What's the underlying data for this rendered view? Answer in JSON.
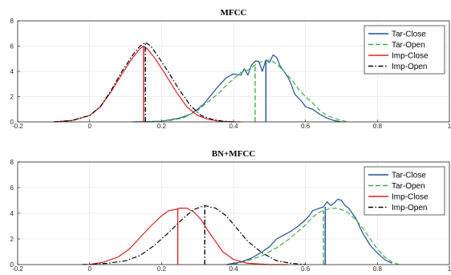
{
  "chart_data": [
    {
      "type": "line",
      "title": "MFCC",
      "xlabel": "",
      "ylabel": "",
      "xlim": [
        -0.2,
        1
      ],
      "ylim": [
        0,
        8
      ],
      "xticks": [
        "-0.2",
        "0",
        "0.2",
        "0.4",
        "0.6",
        "0.8",
        "1"
      ],
      "yticks": [
        "0",
        "2",
        "4",
        "6",
        "8"
      ],
      "grid": true,
      "legend_position": "top-right",
      "series": [
        {
          "name": "Tar-Close",
          "color": "#1f4e9c",
          "dash": "solid",
          "x": [
            0.12,
            0.2,
            0.25,
            0.28,
            0.3,
            0.32,
            0.34,
            0.36,
            0.38,
            0.4,
            0.42,
            0.43,
            0.44,
            0.45,
            0.46,
            0.47,
            0.48,
            0.49,
            0.5,
            0.51,
            0.52,
            0.53,
            0.54,
            0.55,
            0.56,
            0.57,
            0.58,
            0.59,
            0.6,
            0.62,
            0.64,
            0.66,
            0.68,
            0.7
          ],
          "y": [
            0,
            0.05,
            0.3,
            0.6,
            1.0,
            1.5,
            2.2,
            2.9,
            3.5,
            3.8,
            3.7,
            4.2,
            3.7,
            4.5,
            4.8,
            4.8,
            4.0,
            4.9,
            4.7,
            5.3,
            5.1,
            4.4,
            4.0,
            3.6,
            3.0,
            2.2,
            1.9,
            1.6,
            1.2,
            1.0,
            0.6,
            0.3,
            0.1,
            0
          ],
          "marker_x": 0.49,
          "marker_y": 4.9
        },
        {
          "name": "Tar-Open",
          "color": "#3cb043",
          "dash": "dashed",
          "x": [
            0.16,
            0.22,
            0.26,
            0.3,
            0.33,
            0.36,
            0.38,
            0.4,
            0.42,
            0.44,
            0.46,
            0.48,
            0.5,
            0.52,
            0.54,
            0.56,
            0.58,
            0.6,
            0.62,
            0.64,
            0.66,
            0.68,
            0.7,
            0.72
          ],
          "y": [
            0,
            0.1,
            0.3,
            0.9,
            1.6,
            2.3,
            2.9,
            3.4,
            3.9,
            4.1,
            4.5,
            4.8,
            4.9,
            4.6,
            4.0,
            3.4,
            2.6,
            2.0,
            1.5,
            0.9,
            0.5,
            0.3,
            0.1,
            0
          ],
          "marker_x": 0.46,
          "marker_y": 4.5
        },
        {
          "name": "Imp-Close",
          "color": "#e02020",
          "dash": "solid",
          "x": [
            -0.1,
            -0.05,
            0.0,
            0.03,
            0.06,
            0.09,
            0.12,
            0.14,
            0.15,
            0.16,
            0.18,
            0.21,
            0.24,
            0.27,
            0.3,
            0.33,
            0.36,
            0.4,
            0.42
          ],
          "y": [
            0,
            0.1,
            0.5,
            1.2,
            2.4,
            3.8,
            5.1,
            5.8,
            6.0,
            5.8,
            5.1,
            3.8,
            2.4,
            1.2,
            0.5,
            0.2,
            0.05,
            0,
            0
          ],
          "marker_x": 0.15,
          "marker_y": 6.0
        },
        {
          "name": "Imp-Open",
          "color": "#000000",
          "dash": "dashdot",
          "x": [
            -0.1,
            -0.05,
            0.0,
            0.03,
            0.06,
            0.09,
            0.12,
            0.14,
            0.155,
            0.17,
            0.19,
            0.22,
            0.25,
            0.28,
            0.31,
            0.34,
            0.37,
            0.4
          ],
          "y": [
            0,
            0.1,
            0.5,
            1.2,
            2.5,
            4.0,
            5.3,
            6.0,
            6.3,
            6.0,
            5.2,
            3.9,
            2.5,
            1.3,
            0.5,
            0.2,
            0.05,
            0
          ],
          "marker_x": 0.155,
          "marker_y": 6.3
        }
      ]
    },
    {
      "type": "line",
      "title": "BN+MFCC",
      "xlabel": "",
      "ylabel": "",
      "xlim": [
        -0.2,
        1
      ],
      "ylim": [
        0,
        8
      ],
      "xticks": [
        "-0.2",
        "0",
        "0.2",
        "0.4",
        "0.6",
        "0.8",
        "1"
      ],
      "yticks": [
        "0",
        "2",
        "4",
        "6",
        "8"
      ],
      "grid": true,
      "legend_position": "top-right",
      "series": [
        {
          "name": "Tar-Close",
          "color": "#1f4e9c",
          "dash": "solid",
          "x": [
            0.38,
            0.42,
            0.45,
            0.48,
            0.5,
            0.52,
            0.54,
            0.56,
            0.58,
            0.6,
            0.61,
            0.62,
            0.63,
            0.64,
            0.65,
            0.66,
            0.67,
            0.68,
            0.69,
            0.7,
            0.71,
            0.72,
            0.73,
            0.74,
            0.75,
            0.76,
            0.78,
            0.8,
            0.82,
            0.84
          ],
          "y": [
            0,
            0.2,
            0.5,
            1.0,
            1.4,
            2.0,
            2.3,
            2.6,
            3.0,
            3.5,
            3.8,
            4.2,
            4.3,
            4.4,
            4.5,
            4.9,
            4.6,
            4.8,
            5.1,
            5.0,
            4.6,
            4.4,
            4.0,
            3.6,
            3.0,
            2.4,
            1.5,
            0.9,
            0.4,
            0.1
          ],
          "marker_x": 0.655,
          "marker_y": 4.5
        },
        {
          "name": "Tar-Open",
          "color": "#3cb043",
          "dash": "dashed",
          "x": [
            0.4,
            0.44,
            0.48,
            0.52,
            0.55,
            0.58,
            0.6,
            0.62,
            0.64,
            0.66,
            0.68,
            0.7,
            0.72,
            0.74,
            0.76,
            0.78,
            0.8,
            0.82,
            0.84,
            0.86
          ],
          "y": [
            0,
            0.3,
            0.7,
            1.3,
            1.9,
            2.6,
            3.1,
            3.7,
            4.1,
            4.3,
            4.4,
            4.3,
            4.0,
            3.5,
            2.8,
            2.0,
            1.2,
            0.6,
            0.2,
            0
          ],
          "marker_x": 0.65,
          "marker_y": 4.2
        },
        {
          "name": "Imp-Close",
          "color": "#e02020",
          "dash": "solid",
          "x": [
            0.0,
            0.04,
            0.08,
            0.11,
            0.14,
            0.17,
            0.2,
            0.22,
            0.24,
            0.25,
            0.27,
            0.29,
            0.31,
            0.33,
            0.35,
            0.37,
            0.4,
            0.44,
            0.5,
            0.55
          ],
          "y": [
            0,
            0.2,
            0.6,
            1.2,
            2.1,
            3.0,
            3.8,
            4.2,
            4.3,
            4.4,
            4.4,
            4.1,
            3.5,
            2.6,
            1.8,
            1.0,
            0.4,
            0.1,
            0,
            0
          ],
          "marker_x": 0.245,
          "marker_y": 4.4
        },
        {
          "name": "Imp-Open",
          "color": "#000000",
          "dash": "dashdot",
          "x": [
            -0.02,
            0.05,
            0.1,
            0.14,
            0.18,
            0.22,
            0.26,
            0.29,
            0.32,
            0.35,
            0.38,
            0.41,
            0.44,
            0.48,
            0.52,
            0.56,
            0.6
          ],
          "y": [
            0,
            0.1,
            0.3,
            0.7,
            1.5,
            2.5,
            3.6,
            4.3,
            4.6,
            4.4,
            3.8,
            2.8,
            1.8,
            0.9,
            0.3,
            0.1,
            0
          ],
          "marker_x": 0.32,
          "marker_y": 4.6
        }
      ]
    }
  ]
}
